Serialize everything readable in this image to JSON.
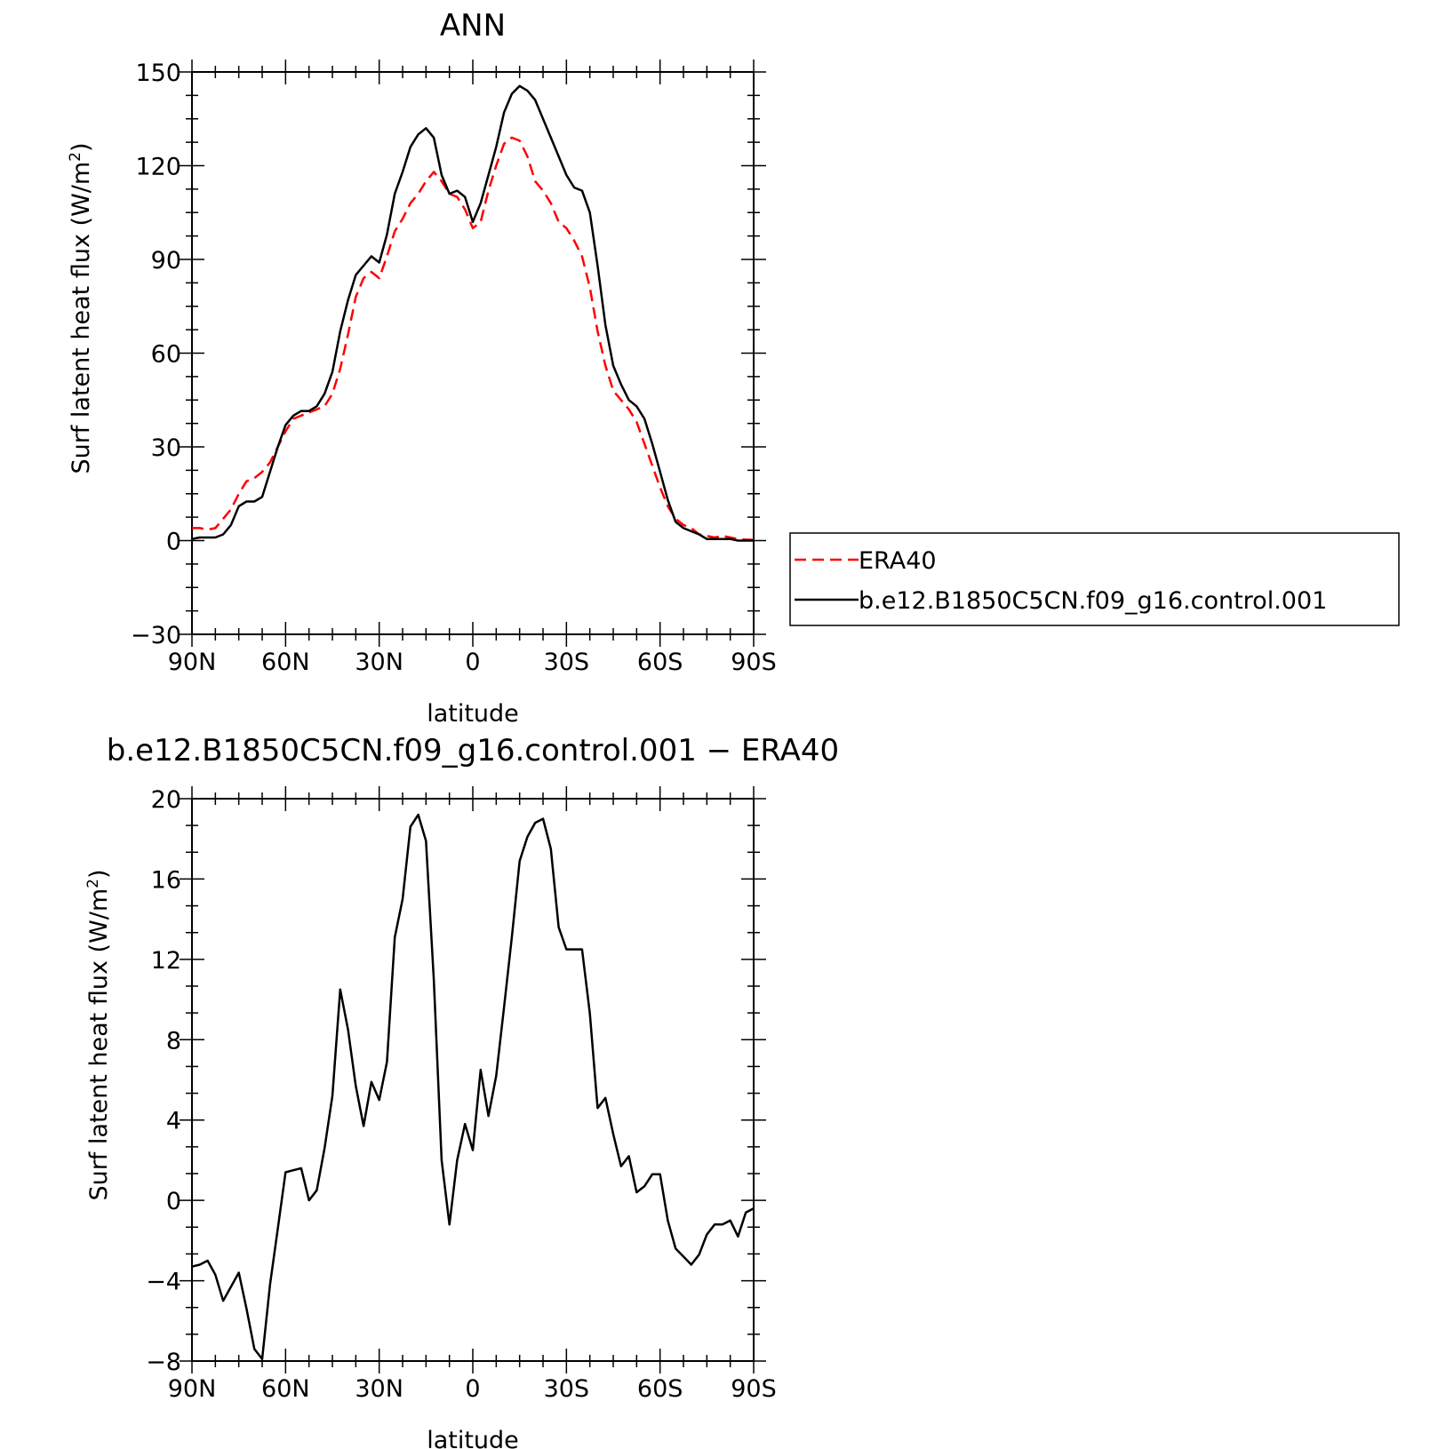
{
  "chart_data": [
    {
      "type": "line",
      "title": "ANN",
      "xlabel": "latitude",
      "ylabel": "Surf latent heat flux (W/m",
      "ylabel_sup": "2",
      "ylabel_close": ")",
      "xlim": [
        90,
        -90
      ],
      "ylim": [
        -30,
        150
      ],
      "yticks": [
        -30,
        0,
        30,
        60,
        90,
        120,
        150
      ],
      "ytick_labels": [
        "−30",
        "0",
        "30",
        "60",
        "90",
        "120",
        "150"
      ],
      "xticks": [
        90,
        60,
        30,
        0,
        -30,
        -60,
        -90
      ],
      "xtick_labels": [
        "90N",
        "60N",
        "30N",
        "0",
        "30S",
        "60S",
        "90S"
      ],
      "legend": "right",
      "grid": false,
      "series": [
        {
          "name": "ERA40",
          "color": "#ff0000",
          "style": "dashed",
          "x": [
            90,
            87.5,
            85,
            82.5,
            80,
            77.5,
            75,
            72.5,
            70,
            67.5,
            65,
            62.5,
            60,
            57.5,
            55,
            52.5,
            50,
            47.5,
            45,
            42.5,
            40,
            37.5,
            35,
            32.5,
            30,
            27.5,
            25,
            22.5,
            20,
            17.5,
            15,
            12.5,
            10,
            7.5,
            5,
            2.5,
            0,
            -2.5,
            -5,
            -7.5,
            -10,
            -12.5,
            -15,
            -17.5,
            -20,
            -22.5,
            -25,
            -27.5,
            -30,
            -32.5,
            -35,
            -37.5,
            -40,
            -42.5,
            -45,
            -47.5,
            -50,
            -52.5,
            -55,
            -57.5,
            -60,
            -62.5,
            -65,
            -67.5,
            -70,
            -72.5,
            -75,
            -77.5,
            -80,
            -82.5,
            -85,
            -87.5,
            -90
          ],
          "values": [
            4,
            4,
            3.5,
            4,
            7,
            10,
            15,
            19,
            20,
            22,
            25,
            30,
            35,
            39,
            40,
            41,
            42,
            43,
            47,
            55,
            66,
            78,
            84,
            86,
            84,
            91,
            99,
            103,
            108,
            111,
            115,
            118,
            115,
            111,
            110,
            106,
            100,
            102,
            112,
            120,
            127,
            129,
            128,
            123,
            115,
            112,
            108,
            102,
            100,
            96,
            91,
            81,
            67,
            56,
            48,
            45,
            42,
            38,
            31,
            24,
            17,
            11,
            7,
            5,
            4,
            2,
            1.5,
            1,
            1.5,
            1,
            0.5,
            0.3,
            0.2
          ]
        },
        {
          "name": "b.e12.B1850C5CN.f09_g16.control.001",
          "color": "#000000",
          "style": "solid",
          "x": [
            90,
            87.5,
            85,
            82.5,
            80,
            77.5,
            75,
            72.5,
            70,
            67.5,
            65,
            62.5,
            60,
            57.5,
            55,
            52.5,
            50,
            47.5,
            45,
            42.5,
            40,
            37.5,
            35,
            32.5,
            30,
            27.5,
            25,
            22.5,
            20,
            17.5,
            15,
            12.5,
            10,
            7.5,
            5,
            2.5,
            0,
            -2.5,
            -5,
            -7.5,
            -10,
            -12.5,
            -15,
            -17.5,
            -20,
            -22.5,
            -25,
            -27.5,
            -30,
            -32.5,
            -35,
            -37.5,
            -40,
            -42.5,
            -45,
            -47.5,
            -50,
            -52.5,
            -55,
            -57.5,
            -60,
            -62.5,
            -65,
            -67.5,
            -70,
            -72.5,
            -75,
            -77.5,
            -80,
            -82.5,
            -85,
            -87.5,
            -90
          ],
          "values": [
            0.5,
            1,
            1,
            1,
            2,
            5,
            11,
            12.5,
            12.5,
            14,
            22,
            30,
            37,
            40,
            41.5,
            41.5,
            43,
            47,
            54,
            67,
            77,
            85,
            88,
            91,
            89,
            98,
            111,
            118,
            126,
            130,
            132,
            129,
            117,
            111,
            112,
            110,
            102,
            108,
            117,
            126,
            137,
            143,
            145.5,
            144,
            141,
            135,
            129,
            123,
            117,
            113,
            112,
            105,
            88,
            69,
            56,
            50,
            45,
            43,
            39,
            31,
            22,
            13,
            6,
            4,
            3,
            2,
            0.5,
            0.5,
            0.5,
            0.5,
            0,
            0,
            0
          ]
        }
      ]
    },
    {
      "type": "line",
      "title": "b.e12.B1850C5CN.f09_g16.control.001 − ERA40",
      "xlabel": "latitude",
      "ylabel": "Surf latent heat flux (W/m",
      "ylabel_sup": "2",
      "ylabel_close": ")",
      "xlim": [
        90,
        -90
      ],
      "ylim": [
        -8,
        20
      ],
      "yticks": [
        -8,
        -4,
        0,
        4,
        8,
        12,
        16,
        20
      ],
      "ytick_labels": [
        "−8",
        "−4",
        "0",
        "4",
        "8",
        "12",
        "16",
        "20"
      ],
      "xticks": [
        90,
        60,
        30,
        0,
        -30,
        -60,
        -90
      ],
      "xtick_labels": [
        "90N",
        "60N",
        "30N",
        "0",
        "30S",
        "60S",
        "90S"
      ],
      "grid": false,
      "series": [
        {
          "color": "#000000",
          "style": "solid",
          "x": [
            90,
            87.5,
            85,
            82.5,
            80,
            77.5,
            75,
            72.5,
            70,
            67.5,
            65,
            62.5,
            60,
            57.5,
            55,
            52.5,
            50,
            47.5,
            45,
            42.5,
            40,
            37.5,
            35,
            32.5,
            30,
            27.5,
            25,
            22.5,
            20,
            17.5,
            15,
            12.5,
            10,
            7.5,
            5,
            2.5,
            0,
            -2.5,
            -5,
            -7.5,
            -10,
            -12.5,
            -15,
            -17.5,
            -20,
            -22.5,
            -25,
            -27.5,
            -30,
            -32.5,
            -35,
            -37.5,
            -40,
            -42.5,
            -45,
            -47.5,
            -50,
            -52.5,
            -55,
            -57.5,
            -60,
            -62.5,
            -65,
            -67.5,
            -70,
            -72.5,
            -75,
            -77.5,
            -80,
            -82.5,
            -85,
            -87.5,
            -90
          ],
          "values": [
            -3.3,
            -3.2,
            -3.0,
            -3.7,
            -5.0,
            -4.3,
            -3.6,
            -5.4,
            -7.4,
            -7.9,
            -4.2,
            -1.4,
            1.4,
            1.5,
            1.6,
            0.0,
            0.5,
            2.6,
            5.2,
            10.5,
            8.5,
            5.7,
            3.7,
            5.9,
            5.0,
            6.9,
            13.1,
            15.0,
            18.6,
            19.2,
            17.9,
            11.0,
            2.0,
            -1.2,
            2.0,
            3.8,
            2.5,
            6.5,
            4.2,
            6.2,
            9.6,
            13.1,
            16.9,
            18.1,
            18.8,
            19.0,
            17.5,
            13.6,
            12.5,
            12.5,
            12.5,
            9.3,
            4.6,
            5.1,
            3.3,
            1.7,
            2.2,
            0.4,
            0.7,
            1.3,
            1.3,
            -1.0,
            -2.4,
            -2.8,
            -3.2,
            -2.7,
            -1.7,
            -1.2,
            -1.2,
            -1.0,
            -1.8,
            -0.6,
            -0.4
          ]
        }
      ]
    }
  ]
}
